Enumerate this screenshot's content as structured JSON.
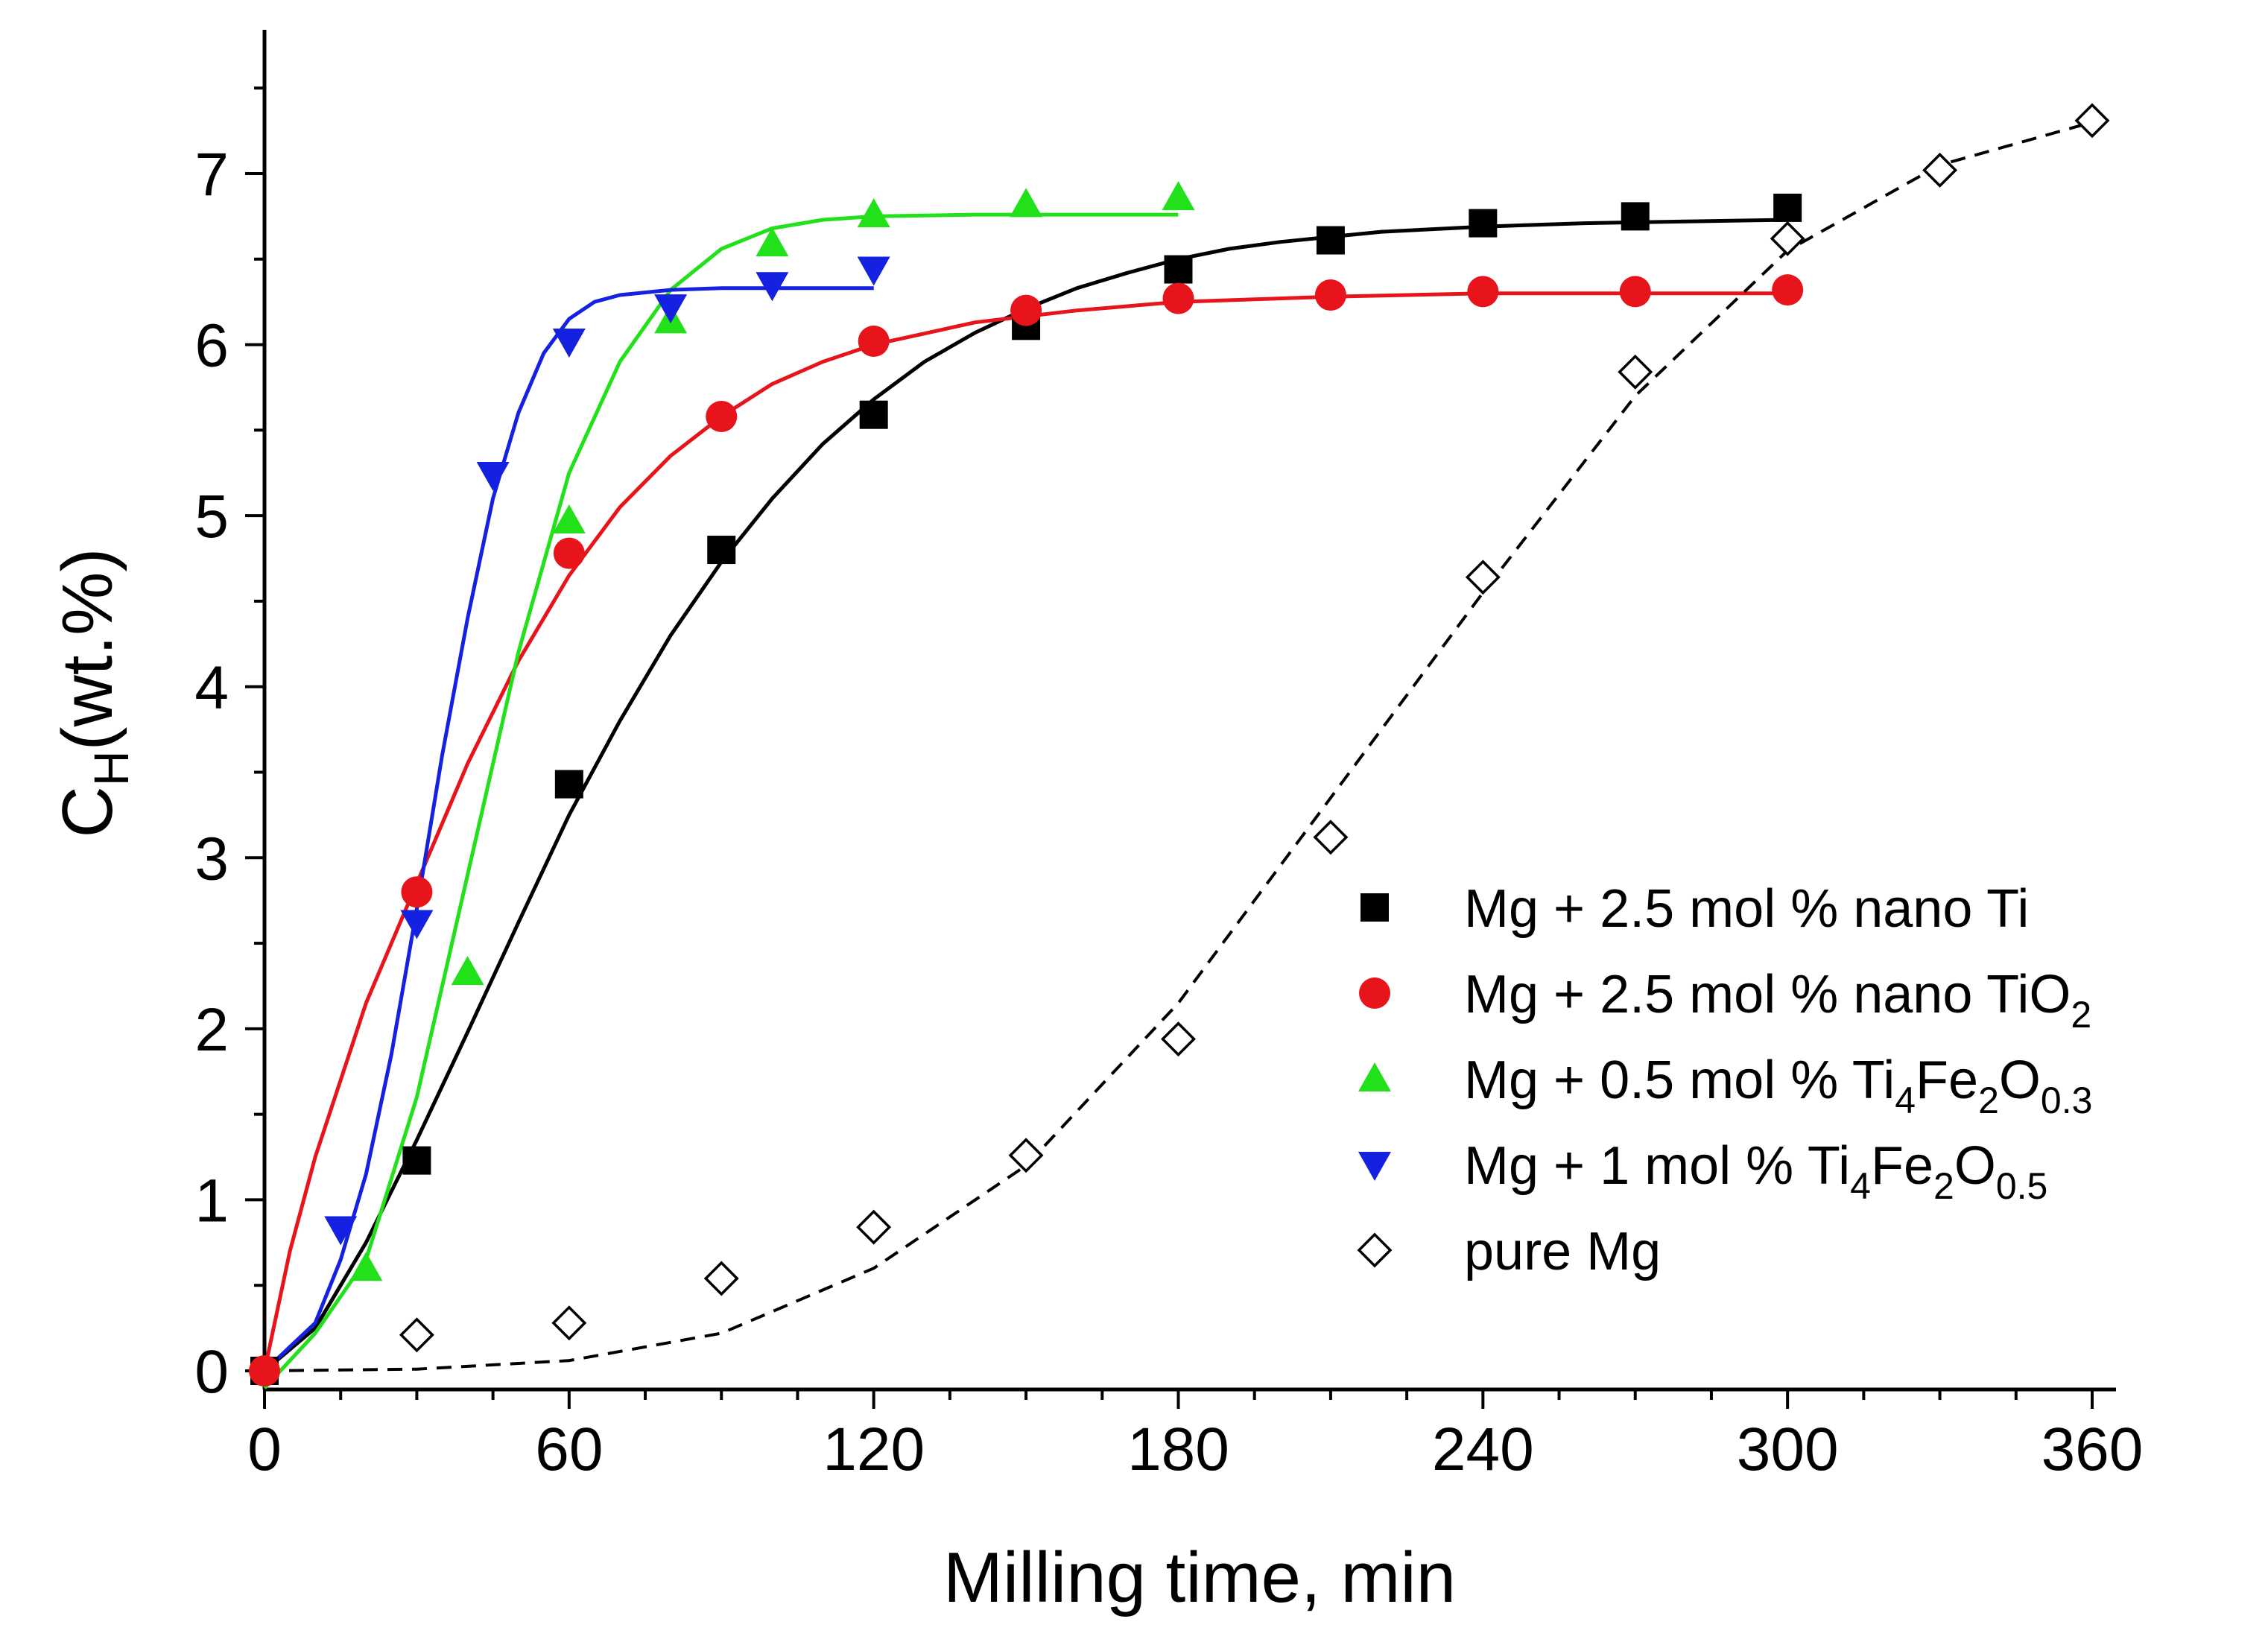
{
  "chart_data": {
    "type": "scatter",
    "xlabel": "Milling time, min",
    "ylabel": {
      "main": "C",
      "sub": "H",
      "rest": "(wt.%)"
    },
    "xlim": [
      0,
      365
    ],
    "ylim": [
      -0.1,
      7.8
    ],
    "xticks": [
      0,
      60,
      120,
      180,
      240,
      300,
      360
    ],
    "yticks": [
      0,
      1,
      2,
      3,
      4,
      5,
      6,
      7
    ],
    "grid": false,
    "legend_position": "bottom-right",
    "series": [
      {
        "name": "Mg + 2.5 mol % nano Ti",
        "legend": [
          {
            "t": "Mg + 2.5 mol % nano Ti"
          }
        ],
        "marker": "square-filled",
        "color": "#000000",
        "fit": "solid",
        "x": [
          0,
          30,
          60,
          90,
          120,
          150,
          180,
          210,
          240,
          270,
          300
        ],
        "y": [
          0,
          1.23,
          3.43,
          4.8,
          5.59,
          6.11,
          6.44,
          6.61,
          6.71,
          6.75,
          6.8
        ],
        "fit_x": [
          0,
          10,
          20,
          30,
          40,
          50,
          60,
          70,
          80,
          90,
          100,
          110,
          120,
          130,
          140,
          150,
          160,
          170,
          180,
          190,
          200,
          210,
          220,
          240,
          260,
          280,
          300
        ],
        "fit_y": [
          0,
          0.25,
          0.75,
          1.35,
          1.98,
          2.62,
          3.25,
          3.8,
          4.3,
          4.73,
          5.1,
          5.42,
          5.68,
          5.9,
          6.07,
          6.21,
          6.33,
          6.42,
          6.5,
          6.56,
          6.6,
          6.63,
          6.66,
          6.69,
          6.71,
          6.72,
          6.73
        ]
      },
      {
        "name": "Mg + 2.5 mol % nano TiO2",
        "legend": [
          {
            "t": "Mg + 2.5 mol % nano TiO"
          },
          {
            "t": "2",
            "sub": true
          }
        ],
        "marker": "circle-filled",
        "color": "#e8141b",
        "fit": "solid",
        "x": [
          0,
          30,
          60,
          90,
          120,
          150,
          180,
          210,
          240,
          270,
          300
        ],
        "y": [
          0,
          2.8,
          4.78,
          5.58,
          6.02,
          6.2,
          6.27,
          6.29,
          6.31,
          6.31,
          6.32
        ],
        "fit_x": [
          0,
          5,
          10,
          20,
          30,
          40,
          50,
          60,
          70,
          80,
          90,
          100,
          110,
          120,
          140,
          160,
          180,
          210,
          240,
          270,
          300
        ],
        "fit_y": [
          0,
          0.7,
          1.25,
          2.15,
          2.85,
          3.55,
          4.15,
          4.65,
          5.05,
          5.35,
          5.58,
          5.77,
          5.9,
          6.0,
          6.13,
          6.2,
          6.25,
          6.28,
          6.3,
          6.3,
          6.3
        ]
      },
      {
        "name": "Mg + 0.5 mol % Ti4Fe2O0.3",
        "legend": [
          {
            "t": "Mg + 0.5 mol % Ti"
          },
          {
            "t": "4",
            "sub": true
          },
          {
            "t": "Fe"
          },
          {
            "t": "2",
            "sub": true
          },
          {
            "t": "O"
          },
          {
            "t": "0.3",
            "sub": true
          }
        ],
        "marker": "triangle-up-filled",
        "color": "#22e01a",
        "fit": "solid",
        "x": [
          20,
          40,
          60,
          80,
          100,
          120,
          150,
          180
        ],
        "y": [
          0.6,
          2.33,
          4.97,
          6.14,
          6.59,
          6.76,
          6.82,
          6.86
        ],
        "fit_x": [
          0,
          10,
          20,
          30,
          40,
          50,
          60,
          70,
          80,
          90,
          100,
          110,
          120,
          140,
          160,
          180
        ],
        "fit_y": [
          -0.1,
          0.22,
          0.65,
          1.6,
          2.9,
          4.2,
          5.25,
          5.9,
          6.32,
          6.56,
          6.68,
          6.73,
          6.75,
          6.76,
          6.76,
          6.76
        ]
      },
      {
        "name": "Mg + 1 mol % Ti4Fe2O0.5",
        "legend": [
          {
            "t": "Mg + 1 mol % Ti"
          },
          {
            "t": "4",
            "sub": true
          },
          {
            "t": "Fe"
          },
          {
            "t": "2",
            "sub": true
          },
          {
            "t": "O"
          },
          {
            "t": "0.5",
            "sub": true
          }
        ],
        "marker": "triangle-down-filled",
        "color": "#1521e0",
        "fit": "solid",
        "x": [
          15,
          30,
          45,
          60,
          80,
          100,
          120
        ],
        "y": [
          0.83,
          2.62,
          5.24,
          6.02,
          6.22,
          6.35,
          6.44
        ],
        "fit_x": [
          0,
          10,
          15,
          20,
          25,
          30,
          35,
          40,
          45,
          50,
          55,
          60,
          65,
          70,
          80,
          90,
          100,
          120
        ],
        "fit_y": [
          0,
          0.28,
          0.65,
          1.15,
          1.85,
          2.7,
          3.6,
          4.4,
          5.1,
          5.6,
          5.95,
          6.15,
          6.25,
          6.29,
          6.32,
          6.33,
          6.33,
          6.33
        ]
      },
      {
        "name": "pure Mg",
        "legend": [
          {
            "t": "pure Mg"
          }
        ],
        "marker": "diamond-open",
        "color": "#000000",
        "fit": "dashed",
        "x": [
          30,
          60,
          90,
          120,
          150,
          180,
          210,
          240,
          270,
          300,
          330,
          360
        ],
        "y": [
          0.21,
          0.28,
          0.54,
          0.84,
          1.26,
          1.94,
          3.12,
          4.64,
          5.84,
          6.62,
          7.02,
          7.31
        ],
        "fit_x": [
          0,
          30,
          60,
          90,
          120,
          150,
          180,
          210,
          240,
          270,
          300,
          330,
          360
        ],
        "fit_y": [
          0,
          0.01,
          0.06,
          0.22,
          0.6,
          1.2,
          2.15,
          3.35,
          4.55,
          5.7,
          6.55,
          7.05,
          7.3
        ]
      }
    ]
  }
}
